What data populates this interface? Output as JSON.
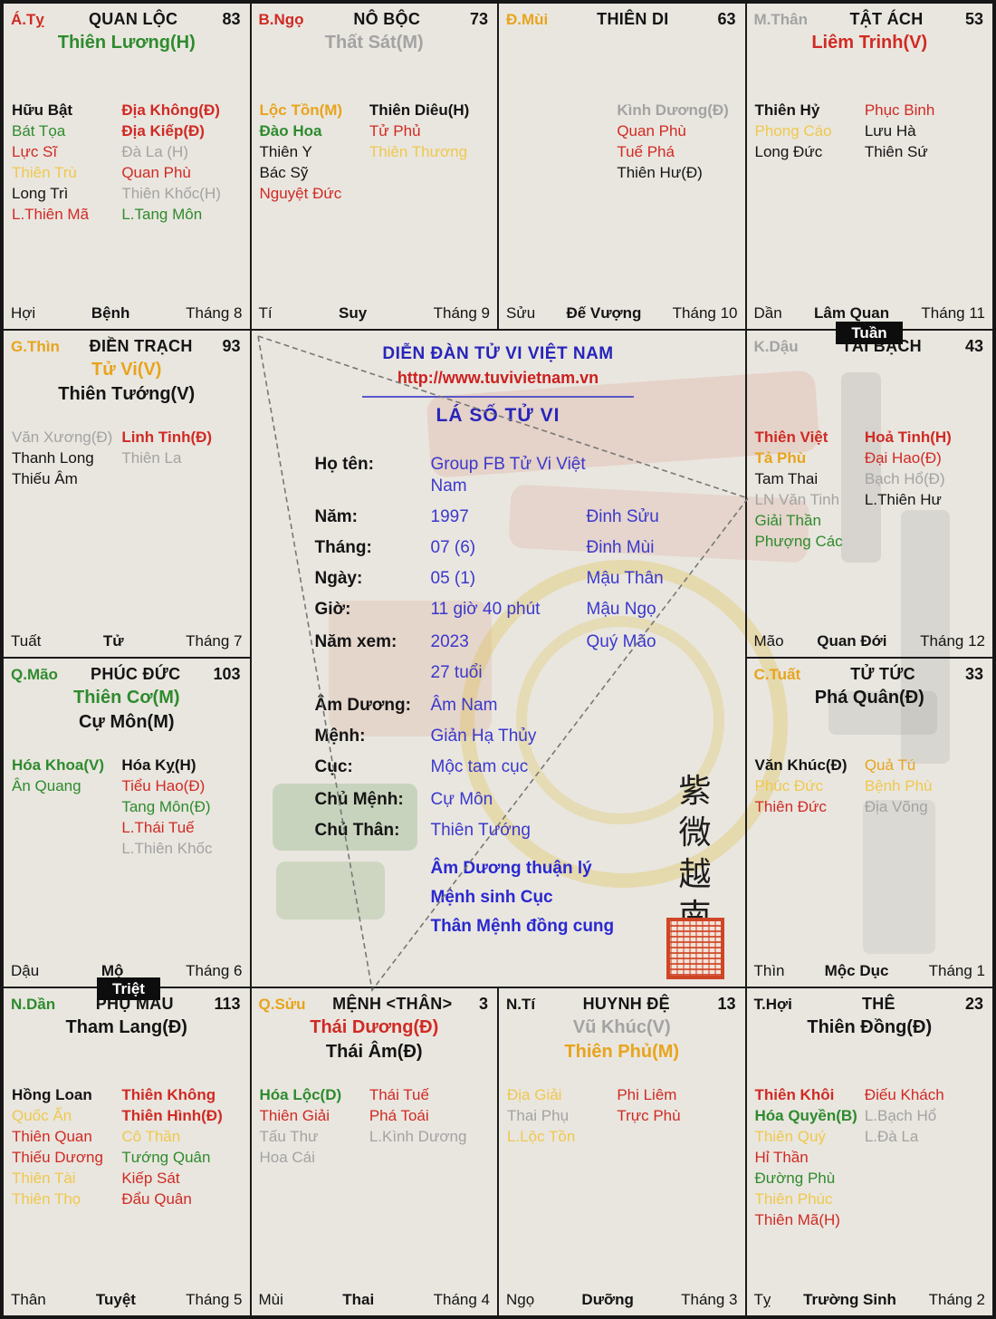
{
  "badges": {
    "tuan": "Tuần",
    "triet": "Triệt"
  },
  "center": {
    "forum": "DIỄN ĐÀN TỬ VI VIỆT NAM",
    "url": "http://www.tuvivietnam.vn",
    "title": "LÁ SỐ TỬ VI",
    "rows": [
      {
        "label": "Họ tên:",
        "value": "Group FB Tử Vi Việt Nam",
        "value2": "",
        "gap": false
      },
      {
        "label": "Năm:",
        "value": "1997",
        "value2": "Đinh Sửu",
        "gap": false
      },
      {
        "label": "Tháng:",
        "value": "07 (6)",
        "value2": "Đinh Mùi",
        "gap": false
      },
      {
        "label": "Ngày:",
        "value": "05 (1)",
        "value2": "Mậu Thân",
        "gap": false
      },
      {
        "label": "Giờ:",
        "value": "11 giờ 40 phút",
        "value2": "Mậu Ngọ",
        "gap": false
      },
      {
        "label": "Năm xem:",
        "value": "2023",
        "value2": "Quý Mão",
        "gap": true
      },
      {
        "label": "",
        "value": "27 tuổi",
        "value2": "",
        "gap": false
      },
      {
        "label": "Âm Dương:",
        "value": "Âm Nam",
        "value2": "",
        "gap": true
      },
      {
        "label": "Mệnh:",
        "value": "Giản Hạ Thủy",
        "value2": "",
        "gap": false
      },
      {
        "label": "Cục:",
        "value": "Mộc tam cục",
        "value2": "",
        "gap": false
      },
      {
        "label": "Chủ Mệnh:",
        "value": "Cự Môn",
        "value2": "",
        "gap": true
      },
      {
        "label": "Chủ Thân:",
        "value": "Thiên Tướng",
        "value2": "",
        "gap": false
      }
    ],
    "notes": [
      "Âm Dương thuận lý",
      "Mệnh sinh Cục",
      "Thân Mệnh đồng cung"
    ],
    "calligraphy": [
      "紫",
      "微",
      "越",
      "南"
    ]
  },
  "palaces": [
    {
      "pos": "ty",
      "chi": "Á.Tỵ",
      "chi_c": "r",
      "title": "QUAN LỘC",
      "score": "83",
      "mains": [
        {
          "t": "Thiên Lương(H)",
          "c": "g"
        }
      ],
      "left": [
        {
          "t": "Hữu Bật",
          "c": "k",
          "b": true
        },
        {
          "t": "Bát Tọa",
          "c": "g"
        },
        {
          "t": "Lực Sĩ",
          "c": "r"
        },
        {
          "t": "Thiên Trù",
          "c": "y"
        },
        {
          "t": "Long Trì",
          "c": "k"
        },
        {
          "t": "L.Thiên Mã",
          "c": "r"
        }
      ],
      "right": [
        {
          "t": "Địa Không(Đ)",
          "c": "r",
          "b": true
        },
        {
          "t": "Địa Kiếp(Đ)",
          "c": "r",
          "b": true
        },
        {
          "t": "Đà La (H)",
          "c": "x"
        },
        {
          "t": "Quan Phù",
          "c": "r"
        },
        {
          "t": "Thiên Khốc(H)",
          "c": "x"
        },
        {
          "t": "L.Tang Môn",
          "c": "g"
        }
      ],
      "foot": {
        "chi": "Hợi",
        "stage": "Bệnh",
        "month": "Tháng 8"
      }
    },
    {
      "pos": "ngo",
      "chi": "B.Ngọ",
      "chi_c": "r",
      "title": "NÔ BỘC",
      "score": "73",
      "mains": [
        {
          "t": "Thất Sát(M)",
          "c": "x"
        }
      ],
      "left": [
        {
          "t": "Lộc Tồn(M)",
          "c": "o",
          "b": true
        },
        {
          "t": "Đào Hoa",
          "c": "g",
          "b": true
        },
        {
          "t": "Thiên Y",
          "c": "k"
        },
        {
          "t": "Bác Sỹ",
          "c": "k"
        },
        {
          "t": "Nguyệt Đức",
          "c": "r"
        }
      ],
      "right": [
        {
          "t": "Thiên Diêu(H)",
          "c": "k",
          "b": true
        },
        {
          "t": "Tử Phủ",
          "c": "r"
        },
        {
          "t": "Thiên Thương",
          "c": "y"
        }
      ],
      "foot": {
        "chi": "Tí",
        "stage": "Suy",
        "month": "Tháng 9"
      }
    },
    {
      "pos": "mui",
      "chi": "Đ.Mùi",
      "chi_c": "o",
      "title": "THIÊN DI",
      "score": "63",
      "mains": [],
      "left": [],
      "right": [
        {
          "t": "Kình Dương(Đ)",
          "c": "x",
          "b": true
        },
        {
          "t": "Quan Phù",
          "c": "r"
        },
        {
          "t": "Tuế Phá",
          "c": "r"
        },
        {
          "t": "Thiên Hư(Đ)",
          "c": "k"
        }
      ],
      "foot": {
        "chi": "Sửu",
        "stage": "Đế Vượng",
        "month": "Tháng 10"
      }
    },
    {
      "pos": "than",
      "chi": "M.Thân",
      "chi_c": "x",
      "title": "TẬT ÁCH",
      "score": "53",
      "mains": [
        {
          "t": "Liêm Trinh(V)",
          "c": "r"
        }
      ],
      "left": [
        {
          "t": "Thiên Hỷ",
          "c": "k",
          "b": true
        },
        {
          "t": "Phong Cáo",
          "c": "y"
        },
        {
          "t": "Long Đức",
          "c": "k"
        }
      ],
      "right": [
        {
          "t": "Phục Binh",
          "c": "r"
        },
        {
          "t": "Lưu Hà",
          "c": "k"
        },
        {
          "t": "Thiên Sứ",
          "c": "k"
        }
      ],
      "foot": {
        "chi": "Dần",
        "stage": "Lâm Quan",
        "month": "Tháng 11"
      }
    },
    {
      "pos": "thin",
      "chi": "G.Thìn",
      "chi_c": "o",
      "title": "ĐIỀN TRẠCH",
      "score": "93",
      "mains": [
        {
          "t": "Tử Vi(V)",
          "c": "o"
        },
        {
          "t": "Thiên Tướng(V)",
          "c": "k"
        }
      ],
      "left": [
        {
          "t": "Văn Xương(Đ)",
          "c": "x"
        },
        {
          "t": "Thanh Long",
          "c": "k"
        },
        {
          "t": "Thiếu Âm",
          "c": "k"
        }
      ],
      "right": [
        {
          "t": "Linh Tinh(Đ)",
          "c": "r",
          "b": true
        },
        {
          "t": "Thiên La",
          "c": "x"
        }
      ],
      "foot": {
        "chi": "Tuất",
        "stage": "Tử",
        "month": "Tháng 7"
      }
    },
    {
      "pos": "dau",
      "chi": "K.Dậu",
      "chi_c": "x",
      "title": "TÀI BẠCH",
      "score": "43",
      "mains": [],
      "left": [
        {
          "t": "Thiên Việt",
          "c": "r",
          "b": true
        },
        {
          "t": "Tả Phù",
          "c": "o",
          "b": true
        },
        {
          "t": "Tam Thai",
          "c": "k"
        },
        {
          "t": "LN Văn Tinh",
          "c": "x"
        },
        {
          "t": "Giải Thần",
          "c": "g"
        },
        {
          "t": "Phượng Các",
          "c": "g"
        }
      ],
      "right": [
        {
          "t": "Hoả Tinh(H)",
          "c": "r",
          "b": true
        },
        {
          "t": "Đại Hao(Đ)",
          "c": "r"
        },
        {
          "t": "Bạch Hổ(Đ)",
          "c": "x"
        },
        {
          "t": "L.Thiên Hư",
          "c": "k"
        }
      ],
      "foot": {
        "chi": "Mão",
        "stage": "Quan Đới",
        "month": "Tháng 12"
      }
    },
    {
      "pos": "mao",
      "chi": "Q.Mão",
      "chi_c": "g",
      "title": "PHÚC ĐỨC",
      "score": "103",
      "mains": [
        {
          "t": "Thiên Cơ(M)",
          "c": "g"
        },
        {
          "t": "Cự Môn(M)",
          "c": "k"
        }
      ],
      "left": [
        {
          "t": "Hóa Khoa(V)",
          "c": "g",
          "b": true
        },
        {
          "t": "Ân Quang",
          "c": "g"
        }
      ],
      "right": [
        {
          "t": "Hóa Kỵ(H)",
          "c": "k",
          "b": true
        },
        {
          "t": "Tiểu Hao(Đ)",
          "c": "r"
        },
        {
          "t": "Tang Môn(Đ)",
          "c": "g"
        },
        {
          "t": "L.Thái Tuế",
          "c": "r"
        },
        {
          "t": "L.Thiên Khốc",
          "c": "x"
        }
      ],
      "foot": {
        "chi": "Dậu",
        "stage": "Mộ",
        "month": "Tháng 6"
      }
    },
    {
      "pos": "tuat",
      "chi": "C.Tuất",
      "chi_c": "o",
      "title": "TỬ TỨC",
      "score": "33",
      "mains": [
        {
          "t": "Phá Quân(Đ)",
          "c": "k"
        }
      ],
      "left": [
        {
          "t": "Văn Khúc(Đ)",
          "c": "k",
          "b": true
        },
        {
          "t": "Phúc Đức",
          "c": "y"
        },
        {
          "t": "Thiên Đức",
          "c": "r"
        }
      ],
      "right": [
        {
          "t": "Quả Tú",
          "c": "o"
        },
        {
          "t": "Bệnh Phù",
          "c": "y"
        },
        {
          "t": "Địa Võng",
          "c": "x"
        }
      ],
      "foot": {
        "chi": "Thìn",
        "stage": "Mộc Dục",
        "month": "Tháng 1"
      }
    },
    {
      "pos": "dan",
      "chi": "N.Dần",
      "chi_c": "g",
      "title": "PHỤ MẪU",
      "score": "113",
      "mains": [
        {
          "t": "Tham Lang(Đ)",
          "c": "k"
        }
      ],
      "left": [
        {
          "t": "Hồng Loan",
          "c": "k",
          "b": true
        },
        {
          "t": "Quốc Ấn",
          "c": "y"
        },
        {
          "t": "Thiên Quan",
          "c": "r"
        },
        {
          "t": "Thiếu Dương",
          "c": "r"
        },
        {
          "t": "Thiên Tài",
          "c": "y"
        },
        {
          "t": "Thiên Thọ",
          "c": "y"
        }
      ],
      "right": [
        {
          "t": "Thiên Không",
          "c": "r",
          "b": true
        },
        {
          "t": "Thiên Hình(Đ)",
          "c": "r",
          "b": true
        },
        {
          "t": "Cô Thần",
          "c": "y"
        },
        {
          "t": "Tướng Quân",
          "c": "g"
        },
        {
          "t": "Kiếp Sát",
          "c": "r"
        },
        {
          "t": "Đẩu Quân",
          "c": "r"
        }
      ],
      "foot": {
        "chi": "Thân",
        "stage": "Tuyệt",
        "month": "Tháng 5"
      }
    },
    {
      "pos": "suu",
      "chi": "Q.Sửu",
      "chi_c": "o",
      "title": "MỆNH <THÂN>",
      "score": "3",
      "mains": [
        {
          "t": "Thái Dương(Đ)",
          "c": "r"
        },
        {
          "t": "Thái Âm(Đ)",
          "c": "k"
        }
      ],
      "left": [
        {
          "t": "Hóa Lộc(D)",
          "c": "g",
          "b": true
        },
        {
          "t": "Thiên Giải",
          "c": "r"
        },
        {
          "t": "Tấu Thư",
          "c": "x"
        },
        {
          "t": "Hoa Cái",
          "c": "x"
        }
      ],
      "right": [
        {
          "t": "Thái Tuế",
          "c": "r"
        },
        {
          "t": "Phá Toái",
          "c": "r"
        },
        {
          "t": "L.Kình Dương",
          "c": "x"
        }
      ],
      "foot": {
        "chi": "Mùi",
        "stage": "Thai",
        "month": "Tháng 4"
      }
    },
    {
      "pos": "ti",
      "chi": "N.Tí",
      "chi_c": "k",
      "title": "HUYNH ĐỆ",
      "score": "13",
      "mains": [
        {
          "t": "Vũ Khúc(V)",
          "c": "x"
        },
        {
          "t": "Thiên Phủ(M)",
          "c": "o"
        }
      ],
      "left": [
        {
          "t": "Địa Giải",
          "c": "y"
        },
        {
          "t": "Thai Phụ",
          "c": "x"
        },
        {
          "t": "L.Lộc Tồn",
          "c": "y"
        }
      ],
      "right": [
        {
          "t": "Phi Liêm",
          "c": "r"
        },
        {
          "t": "Trực Phù",
          "c": "r"
        }
      ],
      "foot": {
        "chi": "Ngọ",
        "stage": "Dưỡng",
        "month": "Tháng 3"
      }
    },
    {
      "pos": "hoi",
      "chi": "T.Hợi",
      "chi_c": "k",
      "title": "THÊ",
      "score": "23",
      "mains": [
        {
          "t": "Thiên Đồng(Đ)",
          "c": "k"
        }
      ],
      "left": [
        {
          "t": "Thiên Khôi",
          "c": "r",
          "b": true
        },
        {
          "t": "Hóa Quyền(B)",
          "c": "g",
          "b": true
        },
        {
          "t": "Thiên Quý",
          "c": "y"
        },
        {
          "t": "Hỉ Thần",
          "c": "r"
        },
        {
          "t": "Đường Phù",
          "c": "g"
        },
        {
          "t": "Thiên Phúc",
          "c": "y"
        },
        {
          "t": "Thiên Mã(H)",
          "c": "r"
        }
      ],
      "right": [
        {
          "t": "Điếu Khách",
          "c": "r"
        },
        {
          "t": "L.Bạch Hổ",
          "c": "x"
        },
        {
          "t": "L.Đà La",
          "c": "x"
        }
      ],
      "foot": {
        "chi": "Tỵ",
        "stage": "Trường Sinh",
        "month": "Tháng 2"
      }
    }
  ]
}
